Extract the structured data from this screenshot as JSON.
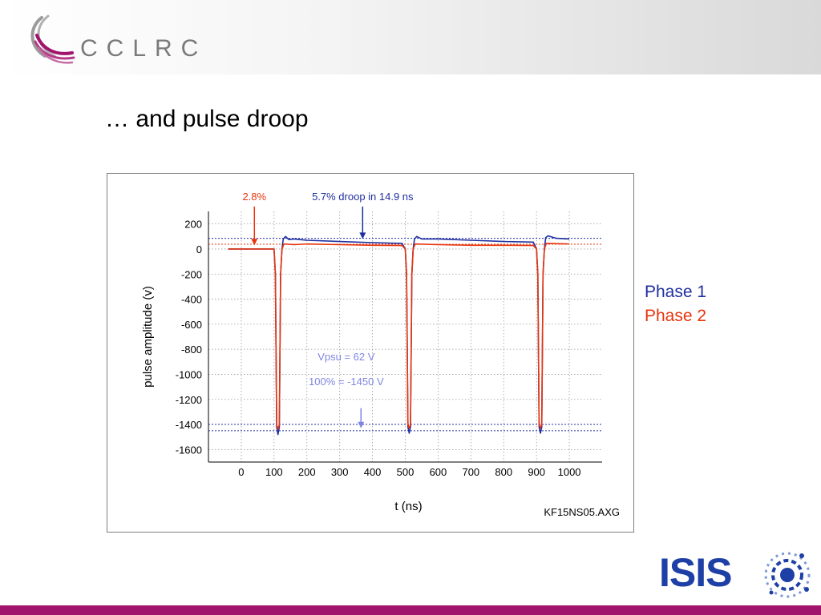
{
  "header": {
    "logo_text": "CCLRC"
  },
  "slide": {
    "title": "… and pulse droop"
  },
  "legend": {
    "phase1": "Phase 1",
    "phase2": "Phase 2"
  },
  "colors": {
    "phase1": "#1f2fa0",
    "phase2": "#e8340c",
    "footer_bar": "#a1146e",
    "logo_pink": "#a1146e",
    "isis_blue": "#1d3fa6"
  },
  "footer": {
    "logo_text": "ISIS"
  },
  "chart_data": {
    "type": "line",
    "title": "",
    "xlabel": "t (ns)",
    "ylabel": "pulse amplitude (v)",
    "xlim": [
      -100,
      1100
    ],
    "ylim": [
      -1700,
      300
    ],
    "grid": true,
    "x_ticks": [
      0,
      100,
      200,
      300,
      400,
      500,
      600,
      700,
      800,
      900,
      1000
    ],
    "y_ticks": [
      200,
      0,
      -200,
      -400,
      -600,
      -800,
      -1000,
      -1200,
      -1400,
      -1600
    ],
    "file_label": "KF15NS05.AXG",
    "reference_lines": [
      {
        "y": 85,
        "color": "#1f2fa0"
      },
      {
        "y": 38,
        "color": "#e8340c"
      },
      {
        "y": -1400,
        "color": "#1f2fa0"
      },
      {
        "y": -1450,
        "color": "#1f2fa0"
      }
    ],
    "annotations": [
      {
        "text": "2.8%",
        "x": 40,
        "y": 390,
        "color": "#e8340c",
        "arrow_to": [
          40,
          30
        ]
      },
      {
        "text": "5.7% droop in 14.9 ns",
        "x": 370,
        "y": 390,
        "color": "#1f2fa0",
        "arrow_to": [
          370,
          80
        ]
      },
      {
        "text": "Vpsu = 62 V",
        "x": 320,
        "y": -890,
        "color": "#7f86e0"
      },
      {
        "text": "100% = -1450 V",
        "x": 320,
        "y": -1085,
        "color": "#7f86e0",
        "arrow_from": [
          365,
          -1270
        ],
        "arrow_to": [
          365,
          -1430
        ]
      }
    ],
    "series": [
      {
        "name": "Phase 1",
        "color": "#1f2fa0",
        "points": [
          [
            -40,
            0
          ],
          [
            100,
            0
          ],
          [
            104,
            -200
          ],
          [
            108,
            -1420
          ],
          [
            112,
            -1480
          ],
          [
            116,
            -1420
          ],
          [
            120,
            -200
          ],
          [
            124,
            0
          ],
          [
            128,
            80
          ],
          [
            135,
            100
          ],
          [
            145,
            75
          ],
          [
            160,
            80
          ],
          [
            200,
            70
          ],
          [
            300,
            60
          ],
          [
            400,
            50
          ],
          [
            490,
            45
          ],
          [
            500,
            0
          ],
          [
            504,
            -200
          ],
          [
            508,
            -1420
          ],
          [
            512,
            -1470
          ],
          [
            516,
            -1420
          ],
          [
            520,
            -200
          ],
          [
            524,
            0
          ],
          [
            528,
            80
          ],
          [
            535,
            100
          ],
          [
            550,
            80
          ],
          [
            600,
            80
          ],
          [
            700,
            70
          ],
          [
            800,
            60
          ],
          [
            890,
            55
          ],
          [
            900,
            0
          ],
          [
            904,
            -200
          ],
          [
            908,
            -1420
          ],
          [
            912,
            -1470
          ],
          [
            916,
            -1420
          ],
          [
            920,
            -200
          ],
          [
            924,
            0
          ],
          [
            928,
            90
          ],
          [
            935,
            105
          ],
          [
            960,
            85
          ],
          [
            1000,
            80
          ]
        ]
      },
      {
        "name": "Phase 2",
        "color": "#e8340c",
        "points": [
          [
            -40,
            0
          ],
          [
            100,
            0
          ],
          [
            104,
            -200
          ],
          [
            108,
            -1400
          ],
          [
            112,
            -1440
          ],
          [
            116,
            -1400
          ],
          [
            120,
            -200
          ],
          [
            124,
            0
          ],
          [
            130,
            40
          ],
          [
            160,
            35
          ],
          [
            200,
            40
          ],
          [
            300,
            35
          ],
          [
            400,
            30
          ],
          [
            490,
            28
          ],
          [
            500,
            0
          ],
          [
            504,
            -200
          ],
          [
            508,
            -1400
          ],
          [
            512,
            -1430
          ],
          [
            516,
            -1400
          ],
          [
            520,
            -200
          ],
          [
            524,
            0
          ],
          [
            530,
            40
          ],
          [
            600,
            35
          ],
          [
            700,
            30
          ],
          [
            800,
            30
          ],
          [
            890,
            28
          ],
          [
            900,
            0
          ],
          [
            904,
            -200
          ],
          [
            908,
            -1400
          ],
          [
            912,
            -1430
          ],
          [
            916,
            -1400
          ],
          [
            920,
            -200
          ],
          [
            924,
            0
          ],
          [
            930,
            45
          ],
          [
            1000,
            40
          ]
        ]
      }
    ]
  }
}
